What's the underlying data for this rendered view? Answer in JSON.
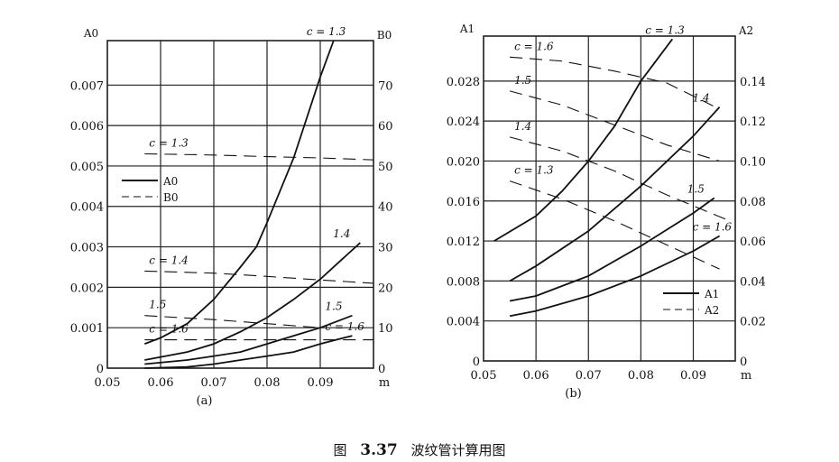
{
  "caption": {
    "prefix": "图",
    "number": "3.37",
    "text": "波纹管计算用图"
  },
  "chart_data": [
    {
      "type": "line",
      "panel_label": "(a)",
      "xlabel": "m",
      "ylabel_left": "A0",
      "ylabel_right": "B0",
      "xlim": [
        0.05,
        0.1
      ],
      "ylim_left": [
        0,
        0.0081
      ],
      "ylim_right": [
        0,
        81
      ],
      "xticks": [
        "0.05",
        "0.06",
        "0.07",
        "0.08",
        "0.09"
      ],
      "yticks_left": [
        "0",
        "0.001",
        "0.002",
        "0.003",
        "0.004",
        "0.005",
        "0.006",
        "0.007"
      ],
      "yticks_right": [
        "0",
        "10",
        "20",
        "30",
        "40",
        "50",
        "60",
        "70"
      ],
      "grid": true,
      "legend": {
        "placement": "left-middle",
        "entries": [
          {
            "label": "A0",
            "style": "solid"
          },
          {
            "label": "B0",
            "style": "dashed"
          }
        ]
      },
      "series": [
        {
          "name": "A0 c=1.3",
          "label": "c = 1.3",
          "axis": "left",
          "style": "solid",
          "x": [
            0.057,
            0.06,
            0.065,
            0.07,
            0.075,
            0.078,
            0.08,
            0.085,
            0.09,
            0.0925
          ],
          "y": [
            0.0006,
            0.00075,
            0.0011,
            0.0017,
            0.0025,
            0.003,
            0.0036,
            0.0052,
            0.0072,
            0.0081
          ]
        },
        {
          "name": "A0 c=1.4",
          "label": "1.4",
          "axis": "left",
          "style": "solid",
          "x": [
            0.057,
            0.065,
            0.07,
            0.075,
            0.08,
            0.085,
            0.09,
            0.095,
            0.0975
          ],
          "y": [
            0.0002,
            0.0004,
            0.0006,
            0.0009,
            0.00125,
            0.0017,
            0.0022,
            0.0028,
            0.0031
          ]
        },
        {
          "name": "A0 c=1.5",
          "label": "1.5",
          "axis": "left",
          "style": "solid",
          "x": [
            0.057,
            0.065,
            0.07,
            0.075,
            0.08,
            0.085,
            0.09,
            0.096
          ],
          "y": [
            0.0001,
            0.0002,
            0.0003,
            0.0004,
            0.0006,
            0.0008,
            0.001,
            0.0013
          ]
        },
        {
          "name": "A0 c=1.6",
          "label": "c = 1.6",
          "axis": "left",
          "style": "solid",
          "x": [
            0.057,
            0.065,
            0.07,
            0.075,
            0.08,
            0.085,
            0.09,
            0.096
          ],
          "y": [
            0.0,
            3e-05,
            0.0001,
            0.0002,
            0.0003,
            0.0004,
            0.0006,
            0.0008
          ]
        },
        {
          "name": "B0 c=1.3",
          "label": "c = 1.3",
          "axis": "right",
          "style": "dashed",
          "x": [
            0.057,
            0.07,
            0.08,
            0.09,
            0.1
          ],
          "y": [
            53,
            52.7,
            52.3,
            52,
            51.5
          ]
        },
        {
          "name": "B0 c=1.4",
          "label": "c = 1.4",
          "axis": "right",
          "style": "dashed",
          "x": [
            0.057,
            0.07,
            0.08,
            0.09,
            0.1
          ],
          "y": [
            24,
            23.5,
            22.7,
            21.8,
            21
          ]
        },
        {
          "name": "B0 c=1.5",
          "label": "1.5",
          "axis": "right",
          "style": "dashed",
          "x": [
            0.057,
            0.07,
            0.08,
            0.09
          ],
          "y": [
            13,
            12,
            11,
            10
          ]
        },
        {
          "name": "B0 c=1.6",
          "label": "c = 1.6",
          "axis": "right",
          "style": "dashed",
          "x": [
            0.057,
            0.07,
            0.08,
            0.09,
            0.1
          ],
          "y": [
            7,
            7,
            7,
            7,
            7
          ]
        }
      ]
    },
    {
      "type": "line",
      "panel_label": "(b)",
      "xlabel": "m",
      "ylabel_left": "A1",
      "ylabel_right": "A2",
      "xlim": [
        0.05,
        0.098
      ],
      "ylim_left": [
        0,
        0.0325
      ],
      "ylim_right": [
        0,
        0.1625
      ],
      "xticks": [
        "0.05",
        "0.06",
        "0.07",
        "0.08",
        "0.09"
      ],
      "yticks_left": [
        "0",
        "0.004",
        "0.008",
        "0.012",
        "0.016",
        "0.020",
        "0.024",
        "0.028"
      ],
      "yticks_right": [
        "0",
        "0.02",
        "0.04",
        "0.06",
        "0.08",
        "0.10",
        "0.12",
        "0.14"
      ],
      "grid": true,
      "legend": {
        "placement": "bottom-right",
        "entries": [
          {
            "label": "A1",
            "style": "solid"
          },
          {
            "label": "A2",
            "style": "dashed"
          }
        ]
      },
      "series": [
        {
          "name": "A1 c=1.3",
          "label": "c = 1.3",
          "axis": "left",
          "style": "solid",
          "x": [
            0.052,
            0.06,
            0.065,
            0.07,
            0.075,
            0.08,
            0.086
          ],
          "y": [
            0.012,
            0.0145,
            0.017,
            0.02,
            0.0235,
            0.028,
            0.0322
          ]
        },
        {
          "name": "A1 c=1.4",
          "label": "1.4",
          "axis": "left",
          "style": "solid",
          "x": [
            0.055,
            0.06,
            0.07,
            0.08,
            0.09,
            0.095
          ],
          "y": [
            0.008,
            0.0095,
            0.013,
            0.0175,
            0.0225,
            0.0254
          ]
        },
        {
          "name": "A1 c=1.5",
          "label": "1.5",
          "axis": "left",
          "style": "solid",
          "x": [
            0.055,
            0.06,
            0.07,
            0.08,
            0.09,
            0.094
          ],
          "y": [
            0.006,
            0.0065,
            0.0085,
            0.0115,
            0.0148,
            0.0163
          ]
        },
        {
          "name": "A1 c=1.6",
          "label": "c = 1.6",
          "axis": "left",
          "style": "solid",
          "x": [
            0.055,
            0.06,
            0.07,
            0.08,
            0.09,
            0.095
          ],
          "y": [
            0.0045,
            0.005,
            0.0065,
            0.0085,
            0.011,
            0.0125
          ]
        },
        {
          "name": "A2 c=1.6",
          "label": "c = 1.6",
          "axis": "right",
          "style": "dashed",
          "x": [
            0.055,
            0.065,
            0.075,
            0.085,
            0.095
          ],
          "y": [
            0.152,
            0.15,
            0.145,
            0.139,
            0.126
          ]
        },
        {
          "name": "A2 c=1.5",
          "label": "1.5",
          "axis": "right",
          "style": "dashed",
          "x": [
            0.055,
            0.065,
            0.075,
            0.085,
            0.095
          ],
          "y": [
            0.135,
            0.128,
            0.118,
            0.108,
            0.1
          ]
        },
        {
          "name": "A2 c=1.4",
          "label": "1.4",
          "axis": "right",
          "style": "dashed",
          "x": [
            0.055,
            0.065,
            0.075,
            0.085,
            0.097
          ],
          "y": [
            0.112,
            0.105,
            0.095,
            0.083,
            0.07
          ]
        },
        {
          "name": "A2 c=1.3",
          "label": "c = 1.3",
          "axis": "right",
          "style": "dashed",
          "x": [
            0.055,
            0.065,
            0.075,
            0.085,
            0.095
          ],
          "y": [
            0.09,
            0.081,
            0.07,
            0.058,
            0.046
          ]
        }
      ]
    }
  ]
}
